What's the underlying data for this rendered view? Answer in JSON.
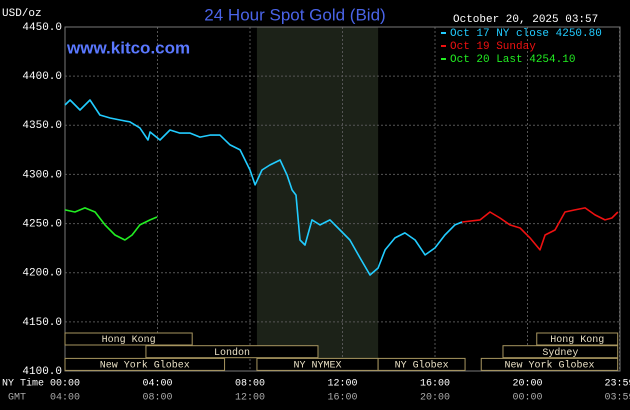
{
  "chart_data": {
    "type": "line",
    "title": "24 Hour Spot Gold (Bid)",
    "timestamp": "October 20, 2025 03:57",
    "watermark": "www.kitco.com",
    "y_label": "USD/oz",
    "x_label": "NY Time",
    "x2_label": "GMT",
    "xlim": [
      0,
      24
    ],
    "ylim": [
      4100,
      4450
    ],
    "grid": true,
    "legend": "top-right",
    "xticks": [
      {
        "value": 0,
        "label": "00:00"
      },
      {
        "value": 4,
        "label": "04:00"
      },
      {
        "value": 8,
        "label": "08:00"
      },
      {
        "value": 12,
        "label": "12:00"
      },
      {
        "value": 16,
        "label": "16:00"
      },
      {
        "value": 20,
        "label": "20:00"
      },
      {
        "value": 23.98,
        "label": "23:59"
      }
    ],
    "x2ticks": [
      {
        "value": 0,
        "label": "04:00"
      },
      {
        "value": 4,
        "label": "08:00"
      },
      {
        "value": 8,
        "label": "12:00"
      },
      {
        "value": 12,
        "label": "16:00"
      },
      {
        "value": 16,
        "label": "20:00"
      },
      {
        "value": 20,
        "label": "00:00"
      },
      {
        "value": 23.98,
        "label": "03:59"
      }
    ],
    "yticks": [
      {
        "value": 4100,
        "label": "4100.0"
      },
      {
        "value": 4150,
        "label": "4150.0"
      },
      {
        "value": 4200,
        "label": "4200.0"
      },
      {
        "value": 4250,
        "label": "4250.0"
      },
      {
        "value": 4300,
        "label": "4300.0"
      },
      {
        "value": 4350,
        "label": "4350.0"
      },
      {
        "value": 4400,
        "label": "4400.0"
      },
      {
        "value": 4450,
        "label": "4450.0"
      }
    ],
    "sessions": [
      {
        "label": "Hong Kong",
        "row": 1,
        "start": 0,
        "end": 5.5
      },
      {
        "label": "Hong Kong",
        "row": 1,
        "start": 20.4,
        "end": 23.9
      },
      {
        "label": "London",
        "row": 2,
        "start": 3.5,
        "end": 10.94
      },
      {
        "label": "Sydney",
        "row": 2,
        "start": 18.94,
        "end": 23.9
      },
      {
        "label": "New York Globex",
        "row": 3,
        "start": 0,
        "end": 6.9
      },
      {
        "label": "NY NYMEX",
        "row": 3,
        "start": 8.3,
        "end": 13.54,
        "shade": true
      },
      {
        "label": "NY Globex",
        "row": 3,
        "start": 13.54,
        "end": 17.3
      },
      {
        "label": "New York Globex",
        "row": 3,
        "start": 18,
        "end": 23.9
      }
    ],
    "series": [
      {
        "name": "Oct 17 NY close 4250.80",
        "color": "#22ccff",
        "x": [
          0,
          0.22,
          0.65,
          1.08,
          1.51,
          1.95,
          2.38,
          2.81,
          3.24,
          3.59,
          3.68,
          4.11,
          4.54,
          4.97,
          5.41,
          5.84,
          6.27,
          6.7,
          7.14,
          7.57,
          8.0,
          8.22,
          8.52,
          8.86,
          9.3,
          9.6,
          9.82,
          9.99,
          10.16,
          10.38,
          10.68,
          11.03,
          11.46,
          11.89,
          12.32,
          12.76,
          13.19,
          13.54,
          13.84,
          14.27,
          14.7,
          15.14,
          15.57,
          16.0,
          16.43,
          16.86,
          17.17
        ],
        "values": [
          4370.6,
          4375.7,
          4365.6,
          4375.7,
          4360.5,
          4357.4,
          4355.4,
          4353.4,
          4347.3,
          4335,
          4343.2,
          4335,
          4345.2,
          4342,
          4342,
          4338,
          4340,
          4340,
          4330,
          4325,
          4304.5,
          4289.3,
          4304.5,
          4309.6,
          4314.7,
          4299.5,
          4284.2,
          4279,
          4233.3,
          4228.2,
          4253.7,
          4248.6,
          4253.7,
          4243.5,
          4233.3,
          4215,
          4197.7,
          4204.8,
          4223.2,
          4235.4,
          4240.5,
          4233.3,
          4218.1,
          4225.2,
          4238.4,
          4248.6,
          4251.6
        ]
      },
      {
        "name": "Oct 19 Sunday",
        "color": "#ee1111",
        "x": [
          17.17,
          17.95,
          18.38,
          18.81,
          19.24,
          19.68,
          20.11,
          20.54,
          20.76,
          21.19,
          21.62,
          22.05,
          22.49,
          22.92,
          23.35,
          23.65,
          23.91
        ],
        "values": [
          4251.6,
          4253.7,
          4261.8,
          4255.7,
          4248.6,
          4245.5,
          4235.4,
          4223.2,
          4238.4,
          4243.5,
          4261.8,
          4263.9,
          4265.9,
          4258.8,
          4253.7,
          4255.7,
          4261.8
        ]
      },
      {
        "name": "Oct 20 Last 4254.10",
        "color": "#22ee22",
        "x": [
          0,
          0.43,
          0.86,
          1.3,
          1.73,
          2.16,
          2.59,
          2.9,
          3.24,
          3.68,
          3.98
        ],
        "values": [
          4263.9,
          4261.8,
          4265.9,
          4261.8,
          4248.6,
          4238.4,
          4233.3,
          4238.4,
          4248.6,
          4253.7,
          4256.7
        ]
      }
    ]
  }
}
